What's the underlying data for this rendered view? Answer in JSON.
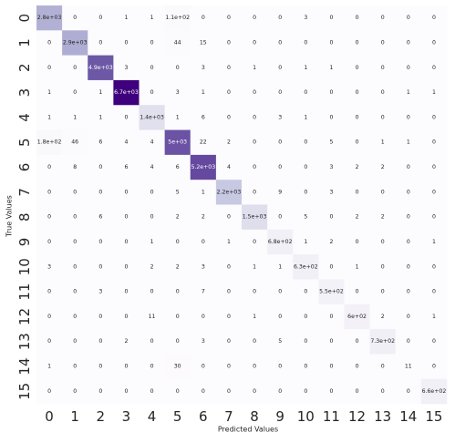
{
  "chart_data": {
    "type": "heatmap",
    "title": "",
    "xlabel": "Predicted Values",
    "ylabel": "True Values",
    "x_categories": [
      "0",
      "1",
      "2",
      "3",
      "4",
      "5",
      "6",
      "7",
      "8",
      "9",
      "10",
      "11",
      "12",
      "13",
      "14",
      "15"
    ],
    "y_categories": [
      "0",
      "1",
      "2",
      "3",
      "4",
      "5",
      "6",
      "7",
      "8",
      "9",
      "10",
      "11",
      "12",
      "13",
      "14",
      "15"
    ],
    "colormap": "Purples",
    "grid": false,
    "colorbar": false,
    "values": [
      [
        2800,
        0,
        0,
        1,
        1,
        110,
        0,
        0,
        0,
        0,
        3,
        0,
        0,
        0,
        0,
        0
      ],
      [
        0,
        2900,
        0,
        0,
        0,
        44,
        15,
        0,
        0,
        0,
        0,
        0,
        0,
        0,
        0,
        0
      ],
      [
        0,
        0,
        4900,
        3,
        0,
        0,
        3,
        0,
        1,
        0,
        1,
        1,
        0,
        0,
        0,
        0
      ],
      [
        1,
        0,
        1,
        6700,
        0,
        3,
        1,
        0,
        0,
        0,
        0,
        0,
        0,
        0,
        1,
        1
      ],
      [
        1,
        1,
        1,
        0,
        1400,
        1,
        6,
        0,
        0,
        3,
        1,
        0,
        0,
        0,
        0,
        0
      ],
      [
        180,
        46,
        6,
        4,
        4,
        5000,
        22,
        2,
        0,
        0,
        0,
        5,
        0,
        1,
        1,
        0
      ],
      [
        0,
        8,
        0,
        6,
        4,
        6,
        5200,
        4,
        0,
        0,
        0,
        3,
        2,
        2,
        0,
        0
      ],
      [
        0,
        0,
        0,
        0,
        0,
        5,
        1,
        2200,
        0,
        9,
        0,
        3,
        0,
        0,
        0,
        0
      ],
      [
        0,
        0,
        6,
        0,
        0,
        2,
        2,
        0,
        1500,
        0,
        5,
        0,
        2,
        2,
        0,
        0
      ],
      [
        0,
        0,
        0,
        0,
        1,
        0,
        0,
        1,
        0,
        680,
        1,
        2,
        0,
        0,
        0,
        1
      ],
      [
        3,
        0,
        0,
        0,
        2,
        2,
        3,
        0,
        1,
        1,
        630,
        0,
        1,
        0,
        0,
        0
      ],
      [
        0,
        0,
        3,
        0,
        0,
        0,
        7,
        0,
        0,
        0,
        0,
        550,
        0,
        0,
        0,
        0
      ],
      [
        0,
        0,
        0,
        0,
        11,
        0,
        0,
        0,
        1,
        0,
        0,
        0,
        600,
        2,
        0,
        1
      ],
      [
        0,
        0,
        0,
        2,
        0,
        0,
        3,
        0,
        0,
        5,
        0,
        0,
        0,
        730,
        0,
        0
      ],
      [
        1,
        0,
        0,
        0,
        0,
        30,
        0,
        0,
        0,
        0,
        0,
        0,
        0,
        0,
        11,
        0
      ],
      [
        0,
        0,
        0,
        0,
        0,
        0,
        0,
        0,
        0,
        0,
        0,
        0,
        0,
        0,
        0,
        660
      ]
    ],
    "value_labels": [
      [
        "2.8e+03",
        "0",
        "0",
        "1",
        "1",
        "1.1e+02",
        "0",
        "0",
        "0",
        "0",
        "3",
        "0",
        "0",
        "0",
        "0",
        "0"
      ],
      [
        "0",
        "2.9e+03",
        "0",
        "0",
        "0",
        "44",
        "15",
        "0",
        "0",
        "0",
        "0",
        "0",
        "0",
        "0",
        "0",
        "0"
      ],
      [
        "0",
        "0",
        "4.9e+03",
        "3",
        "0",
        "0",
        "3",
        "0",
        "1",
        "0",
        "1",
        "1",
        "0",
        "0",
        "0",
        "0"
      ],
      [
        "1",
        "0",
        "1",
        "6.7e+03",
        "0",
        "3",
        "1",
        "0",
        "0",
        "0",
        "0",
        "0",
        "0",
        "0",
        "1",
        "1"
      ],
      [
        "1",
        "1",
        "1",
        "0",
        "1.4e+03",
        "1",
        "6",
        "0",
        "0",
        "3",
        "1",
        "0",
        "0",
        "0",
        "0",
        "0"
      ],
      [
        "1.8e+02",
        "46",
        "6",
        "4",
        "4",
        "5e+03",
        "22",
        "2",
        "0",
        "0",
        "0",
        "5",
        "0",
        "1",
        "1",
        "0"
      ],
      [
        "0",
        "8",
        "0",
        "6",
        "4",
        "6",
        "5.2e+03",
        "4",
        "0",
        "0",
        "0",
        "3",
        "2",
        "2",
        "0",
        "0"
      ],
      [
        "0",
        "0",
        "0",
        "0",
        "0",
        "5",
        "1",
        "2.2e+03",
        "0",
        "9",
        "0",
        "3",
        "0",
        "0",
        "0",
        "0"
      ],
      [
        "0",
        "0",
        "6",
        "0",
        "0",
        "2",
        "2",
        "0",
        "1.5e+03",
        "0",
        "5",
        "0",
        "2",
        "2",
        "0",
        "0"
      ],
      [
        "0",
        "0",
        "0",
        "0",
        "1",
        "0",
        "0",
        "1",
        "0",
        "6.8e+02",
        "1",
        "2",
        "0",
        "0",
        "0",
        "1"
      ],
      [
        "3",
        "0",
        "0",
        "0",
        "2",
        "2",
        "3",
        "0",
        "1",
        "1",
        "6.3e+02",
        "0",
        "1",
        "0",
        "0",
        "0"
      ],
      [
        "0",
        "0",
        "3",
        "0",
        "0",
        "0",
        "7",
        "0",
        "0",
        "0",
        "0",
        "5.5e+02",
        "0",
        "0",
        "0",
        "0"
      ],
      [
        "0",
        "0",
        "0",
        "0",
        "11",
        "0",
        "0",
        "0",
        "1",
        "0",
        "0",
        "0",
        "6e+02",
        "2",
        "0",
        "1"
      ],
      [
        "0",
        "0",
        "0",
        "2",
        "0",
        "0",
        "3",
        "0",
        "0",
        "5",
        "0",
        "0",
        "0",
        "7.3e+02",
        "0",
        "0"
      ],
      [
        "1",
        "0",
        "0",
        "0",
        "0",
        "30",
        "0",
        "0",
        "0",
        "0",
        "0",
        "0",
        "0",
        "0",
        "11",
        "0"
      ],
      [
        "0",
        "0",
        "0",
        "0",
        "0",
        "0",
        "0",
        "0",
        "0",
        "0",
        "0",
        "0",
        "0",
        "0",
        "0",
        "6.6e+02"
      ]
    ],
    "vmin": 0,
    "vmax": 6700
  }
}
